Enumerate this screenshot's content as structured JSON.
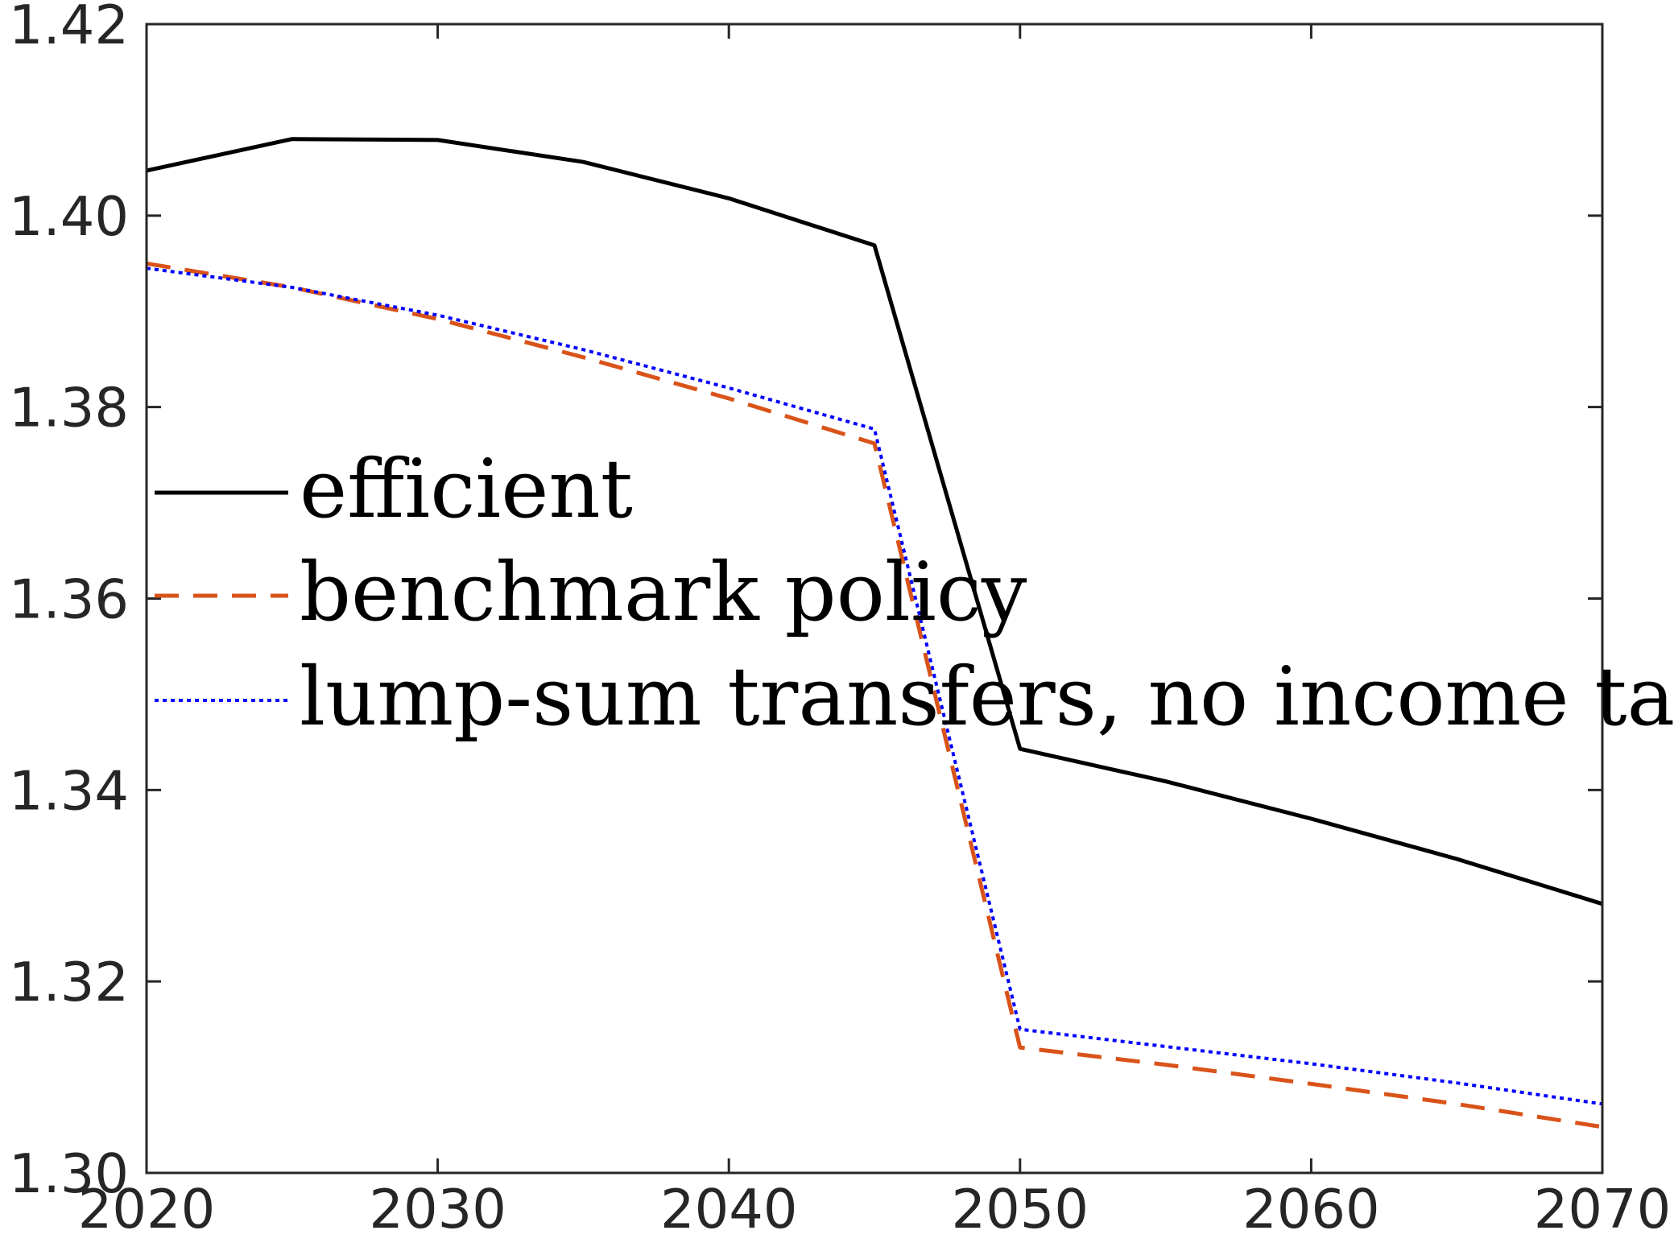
{
  "chart_data": {
    "type": "line",
    "title": "",
    "xlabel": "",
    "ylabel": "",
    "xlim": [
      2020,
      2070
    ],
    "ylim": [
      1.3,
      1.42
    ],
    "x_ticks": [
      2020,
      2030,
      2040,
      2050,
      2060,
      2070
    ],
    "x_tick_labels": [
      "2020",
      "2030",
      "2040",
      "2050",
      "2060",
      "2070"
    ],
    "y_ticks": [
      1.3,
      1.32,
      1.34,
      1.36,
      1.38,
      1.4,
      1.42
    ],
    "y_tick_labels": [
      "1.30",
      "1.32",
      "1.34",
      "1.36",
      "1.38",
      "1.40",
      "1.42"
    ],
    "grid": false,
    "legend_position": "center-left",
    "x": [
      2020,
      2025,
      2030,
      2035,
      2040,
      2045,
      2050,
      2055,
      2060,
      2065,
      2070
    ],
    "series": [
      {
        "name": "efficient",
        "color": "#000000",
        "style": "solid",
        "values": [
          1.4047,
          1.408,
          1.4079,
          1.4056,
          1.4018,
          1.3969,
          1.3443,
          1.3409,
          1.337,
          1.3328,
          1.3281
        ]
      },
      {
        "name": "benchmark policy",
        "color": "#D95319",
        "style": "dashed",
        "values": [
          1.395,
          1.3925,
          1.3892,
          1.3852,
          1.3809,
          1.3762,
          1.3131,
          1.3113,
          1.3093,
          1.3072,
          1.3048
        ]
      },
      {
        "name": "lump-sum transfers, no income tax",
        "color": "#0000FF",
        "style": "dotted",
        "values": [
          1.3945,
          1.3925,
          1.3896,
          1.386,
          1.382,
          1.3777,
          1.315,
          1.3132,
          1.3114,
          1.3094,
          1.3072
        ]
      }
    ]
  }
}
